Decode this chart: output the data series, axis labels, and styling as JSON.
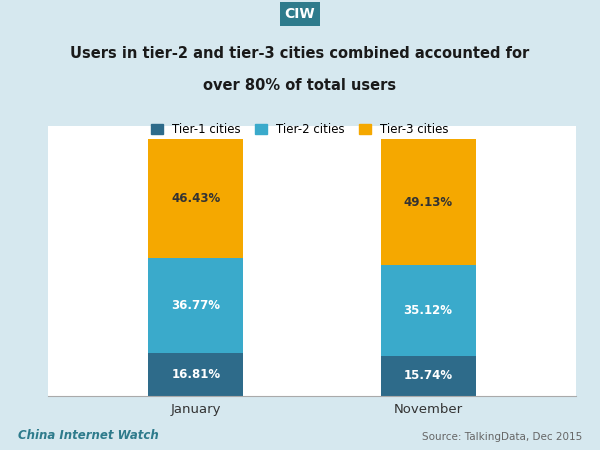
{
  "categories": [
    "January",
    "November"
  ],
  "tier1": [
    16.81,
    15.74
  ],
  "tier2": [
    36.77,
    35.12
  ],
  "tier3": [
    46.43,
    49.13
  ],
  "tier1_color": "#2E6B8A",
  "tier2_color": "#3AAACB",
  "tier3_color": "#F5A800",
  "title_line1": "Users in tier-2 and tier-3 cities combined accounted for",
  "title_line2": "over 80% of total users",
  "legend_labels": [
    "Tier-1 cities",
    "Tier-2 cities",
    "Tier-3 cities"
  ],
  "ciw_label": "CIW",
  "ciw_bg": "#2E7B8C",
  "footer_left": "China Internet Watch",
  "footer_right": "Source: TalkingData, Dec 2015",
  "bar_width": 0.18,
  "outer_bg": "#D6E8EF",
  "inner_bg": "#FFFFFF",
  "label_color_dark": "#333333",
  "label_color_white": "#FFFFFF"
}
